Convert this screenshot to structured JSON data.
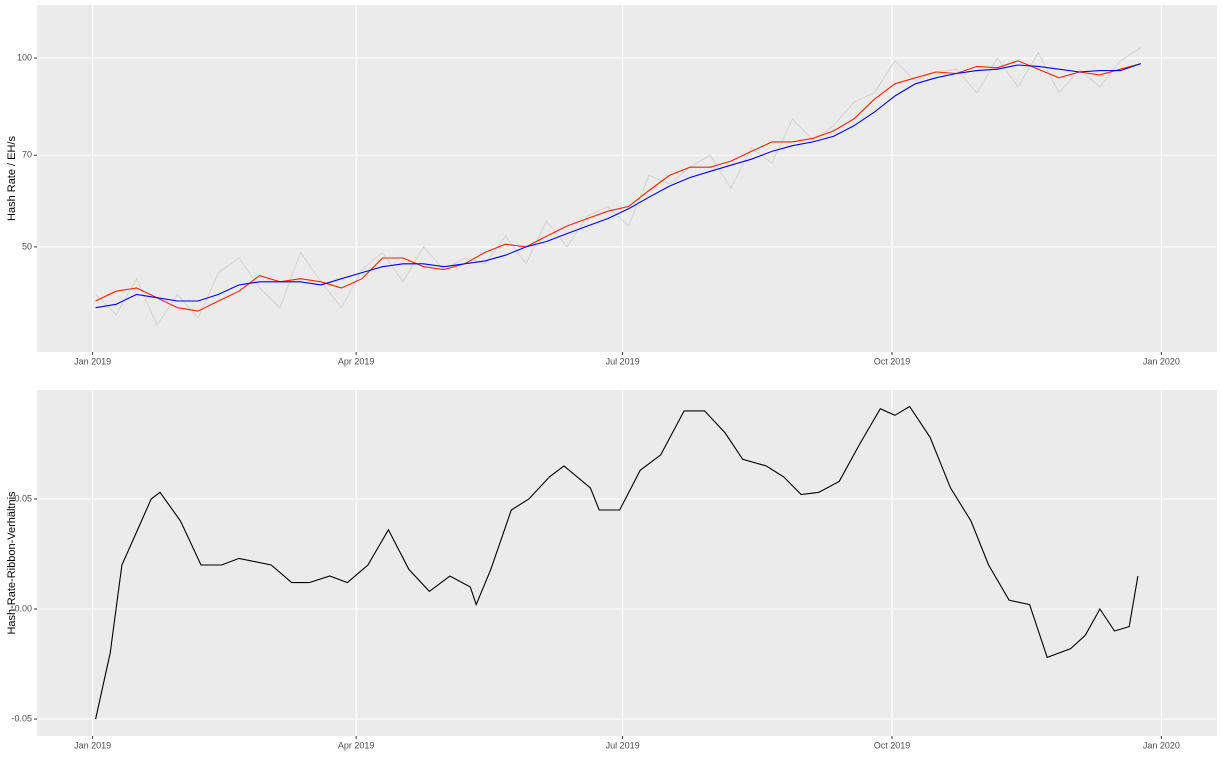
{
  "chart_data": [
    {
      "type": "line",
      "ylabel": "Hash Rate / EH/s",
      "log_y": true,
      "grid": true,
      "x": [
        1,
        8,
        15,
        22,
        29,
        36,
        43,
        50,
        57,
        64,
        71,
        78,
        85,
        92,
        99,
        106,
        113,
        120,
        127,
        134,
        141,
        148,
        155,
        162,
        169,
        176,
        183,
        190,
        197,
        204,
        211,
        218,
        225,
        232,
        239,
        246,
        253,
        260,
        267,
        274,
        281,
        288,
        295,
        302,
        309,
        316,
        323,
        330,
        337,
        344,
        351,
        358
      ],
      "series": [
        {
          "color": "#d3d3d3",
          "values": [
            42,
            39,
            44.5,
            37.5,
            42,
            38.5,
            45.5,
            48,
            43,
            40,
            49,
            44,
            40,
            46,
            49,
            44,
            50,
            46,
            48,
            47,
            52,
            47,
            55,
            50,
            56,
            58,
            54,
            65,
            63,
            67,
            70,
            62,
            72,
            68,
            80,
            74,
            78,
            85,
            88,
            99,
            92,
            95,
            96,
            88,
            100,
            90,
            102,
            88,
            96,
            90,
            99,
            104
          ]
        },
        {
          "color": "#ff2200",
          "values": [
            41,
            42.5,
            43,
            41.5,
            40,
            39.5,
            41,
            42.5,
            45,
            44,
            44.5,
            44,
            43,
            44.5,
            48,
            48,
            46.5,
            46,
            47,
            49,
            50.5,
            50,
            52,
            54,
            55.5,
            57,
            58,
            61.5,
            65,
            67,
            67,
            68.5,
            71,
            73.5,
            73.5,
            74.5,
            76.5,
            80,
            86,
            91,
            93,
            95,
            94.5,
            97,
            96.5,
            99,
            96,
            93,
            95,
            94,
            96,
            98
          ]
        },
        {
          "color": "#0000ff",
          "values": [
            40,
            40.5,
            42,
            41.5,
            41,
            41,
            42,
            43.5,
            44,
            44,
            44,
            43.5,
            44.5,
            45.5,
            46.5,
            47,
            47,
            46.5,
            47,
            47.5,
            48.5,
            50,
            51,
            52.5,
            54,
            55.5,
            57.5,
            60,
            62.5,
            64.5,
            66,
            67.5,
            69,
            71,
            72.5,
            73.5,
            75,
            78,
            82,
            87,
            91,
            93,
            94.5,
            95.5,
            96,
            97.5,
            97,
            96,
            95,
            95.5,
            95.5,
            98
          ]
        }
      ],
      "xlim": [
        -19,
        384
      ],
      "xticks": [
        {
          "value": 0,
          "label": "Jan 2019"
        },
        {
          "value": 90,
          "label": "Apr 2019"
        },
        {
          "value": 181,
          "label": "Jul 2019"
        },
        {
          "value": 273,
          "label": "Oct 2019"
        },
        {
          "value": 365,
          "label": "Jan 2020"
        }
      ],
      "ylim": [
        34,
        121.5
      ],
      "yticks": [
        50,
        70,
        100
      ]
    },
    {
      "type": "line",
      "ylabel": "Hash-Rate-Ribbon-Verhältnis",
      "grid": true,
      "x": [
        1,
        6,
        10,
        15,
        20,
        23,
        30,
        37,
        44,
        50,
        61,
        68,
        74,
        81,
        87,
        94,
        101,
        108,
        115,
        122,
        129,
        131,
        136,
        143,
        149,
        156,
        161,
        170,
        173,
        180,
        187,
        194,
        202,
        209,
        216,
        222,
        230,
        236,
        242,
        248,
        255,
        262,
        269,
        274,
        279,
        286,
        293,
        300,
        306,
        313,
        320,
        326,
        334,
        339,
        344,
        349,
        354,
        357
      ],
      "series": [
        {
          "color": "#000000",
          "values": [
            -0.05,
            -0.02,
            0.02,
            0.035,
            0.05,
            0.053,
            0.04,
            0.02,
            0.02,
            0.023,
            0.02,
            0.012,
            0.012,
            0.015,
            0.012,
            0.02,
            0.036,
            0.018,
            0.008,
            0.015,
            0.01,
            0.002,
            0.018,
            0.045,
            0.05,
            0.06,
            0.065,
            0.055,
            0.045,
            0.045,
            0.063,
            0.07,
            0.09,
            0.09,
            0.08,
            0.068,
            0.065,
            0.06,
            0.052,
            0.053,
            0.058,
            0.075,
            0.091,
            0.088,
            0.092,
            0.078,
            0.055,
            0.04,
            0.02,
            0.004,
            0.002,
            -0.022,
            -0.018,
            -0.012,
            0,
            -0.01,
            -0.008,
            0.015
          ]
        }
      ],
      "xlim": [
        -19,
        384
      ],
      "xticks": [
        {
          "value": 0,
          "label": "Jan 2019"
        },
        {
          "value": 90,
          "label": "Apr 2019"
        },
        {
          "value": 181,
          "label": "Jul 2019"
        },
        {
          "value": 273,
          "label": "Oct 2019"
        },
        {
          "value": 365,
          "label": "Jan 2020"
        }
      ],
      "ylim": [
        -0.0577,
        0.0995
      ],
      "yticks": [
        -0.05,
        {
          "value": 0,
          "label": "0.00"
        },
        0.05
      ]
    }
  ]
}
